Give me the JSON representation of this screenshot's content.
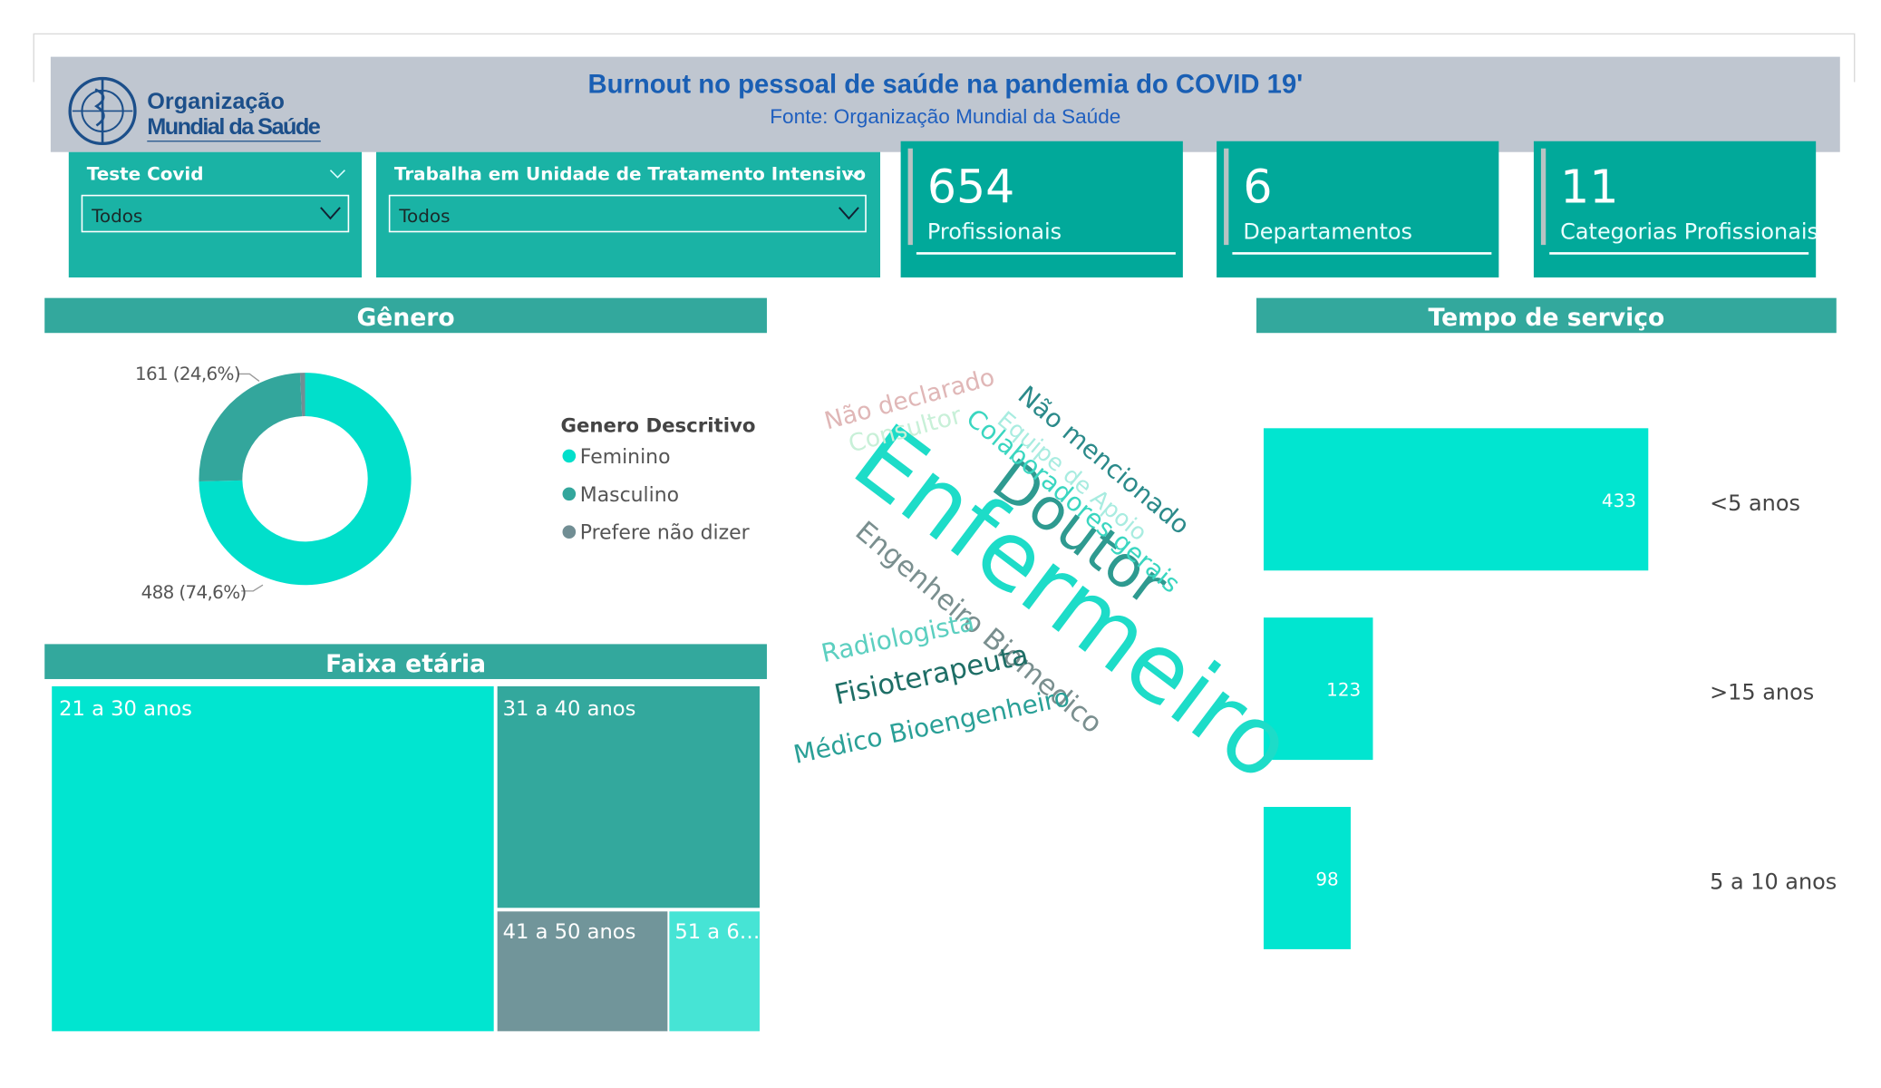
{
  "header": {
    "title": "Burnout no pessoal de saúde na pandemia do COVID 19'",
    "subtitle": "Fonte: Organização Mundial da Saúde",
    "logo_line1": "Organização",
    "logo_line2": "Mundial da Saúde"
  },
  "filters": [
    {
      "label": "Teste Covid",
      "value": "Todos"
    },
    {
      "label": "Trabalha em Unidade de Tratamento Intensivo",
      "value": "Todos"
    }
  ],
  "cards": [
    {
      "value": 654,
      "label": "Profissionais"
    },
    {
      "value": 6,
      "label": "Departamentos"
    },
    {
      "value": 11,
      "label": "Categorias Profissionais"
    }
  ],
  "wordcloud": {
    "words": [
      "Enfermeiro",
      "Doutor",
      "Não mencionado",
      "Equipe de Apoio",
      "Colaboradores gerais",
      "Engenheiro Biomedico",
      "Não declarado",
      "Consultor",
      "Radiologista",
      "Fisioterapeuta",
      "Médico Bioengenheiro"
    ]
  },
  "chart_data": [
    {
      "type": "pie",
      "title": "Gênero",
      "legend_title": "Genero Descritivo",
      "categories": [
        "Feminino",
        "Masculino",
        "Prefere não dizer"
      ],
      "values": [
        488,
        161,
        5
      ],
      "value_labels": [
        "488 (74,6%)",
        "161 (24,6%)",
        null
      ],
      "colors": [
        "#01dfcb",
        "#33a69c",
        "#718e94"
      ],
      "donut": true
    },
    {
      "type": "treemap",
      "title": "Faixa etária",
      "categories": [
        "21 a 30 anos",
        "31 a 40 anos",
        "41 a 50 anos",
        "51 a 6…"
      ],
      "values": [
        410,
        158,
        56,
        30
      ],
      "colors": [
        "#01e5d0",
        "#33a89d",
        "#71959a",
        "#46e4d5"
      ]
    },
    {
      "type": "bar",
      "orientation": "horizontal",
      "title": "Tempo de serviço",
      "categories": [
        "<5 anos",
        ">15 anos",
        "5 a 10 anos"
      ],
      "values": [
        433,
        123,
        98
      ],
      "color": "#01e5d0"
    }
  ]
}
